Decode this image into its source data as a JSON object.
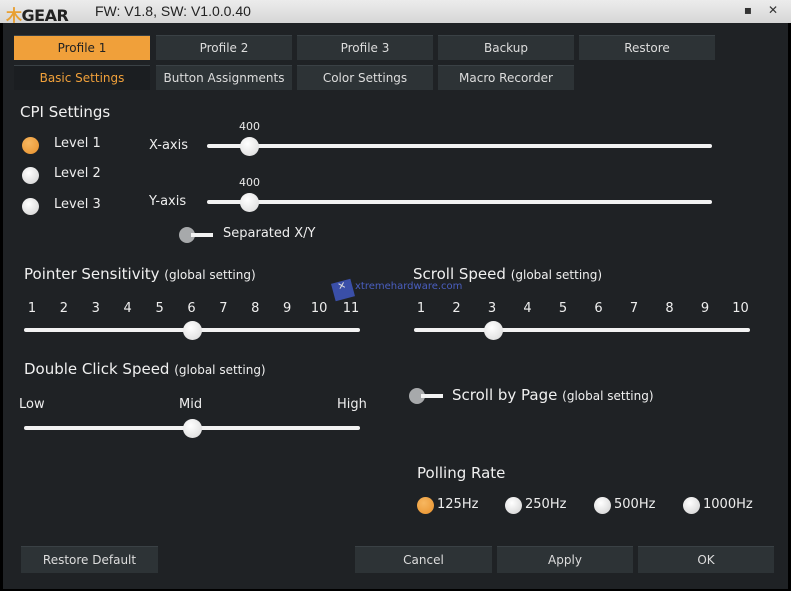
{
  "titlebar": {
    "logo": "GEAR",
    "version": "FW: V1.8, SW: V1.0.0.40",
    "minimize": "▪",
    "close": "✕"
  },
  "profile_tabs": [
    {
      "label": "Profile 1",
      "active": true
    },
    {
      "label": "Profile 2"
    },
    {
      "label": "Profile 3"
    },
    {
      "label": "Backup"
    },
    {
      "label": "Restore"
    }
  ],
  "sub_tabs": [
    {
      "label": "Basic Settings",
      "active": true
    },
    {
      "label": "Button Assignments"
    },
    {
      "label": "Color Settings"
    },
    {
      "label": "Macro Recorder"
    }
  ],
  "cpi": {
    "title": "CPI Settings",
    "levels": [
      {
        "label": "Level 1",
        "selected": true
      },
      {
        "label": "Level 2"
      },
      {
        "label": "Level 3"
      }
    ],
    "x_axis": {
      "label": "X-axis",
      "value": "400"
    },
    "y_axis": {
      "label": "Y-axis",
      "value": "400"
    },
    "separated": {
      "label": "Separated X/Y",
      "on": false
    }
  },
  "pointer": {
    "title": "Pointer Sensitivity",
    "note": "(global setting)",
    "ticks": [
      "1",
      "2",
      "3",
      "4",
      "5",
      "6",
      "7",
      "8",
      "9",
      "10",
      "11"
    ],
    "value": 6
  },
  "scroll": {
    "title": "Scroll Speed",
    "note": "(global setting)",
    "ticks": [
      "1",
      "2",
      "3",
      "4",
      "5",
      "6",
      "7",
      "8",
      "9",
      "10"
    ],
    "value": 3
  },
  "double_click": {
    "title": "Double Click Speed",
    "note": "(global setting)",
    "low": "Low",
    "mid": "Mid",
    "high": "High",
    "value": "Mid"
  },
  "scroll_by_page": {
    "label": "Scroll by Page",
    "note": "(global setting)",
    "on": false
  },
  "polling": {
    "title": "Polling Rate",
    "options": [
      {
        "label": "125Hz",
        "selected": true
      },
      {
        "label": "250Hz"
      },
      {
        "label": "500Hz"
      },
      {
        "label": "1000Hz"
      }
    ]
  },
  "buttons": {
    "restore_default": "Restore Default",
    "cancel": "Cancel",
    "apply": "Apply",
    "ok": "OK"
  },
  "watermark": "xtremehardware.com",
  "colors": {
    "accent": "#f0a03a",
    "background": "#1f2225",
    "tab": "#2d3336"
  }
}
